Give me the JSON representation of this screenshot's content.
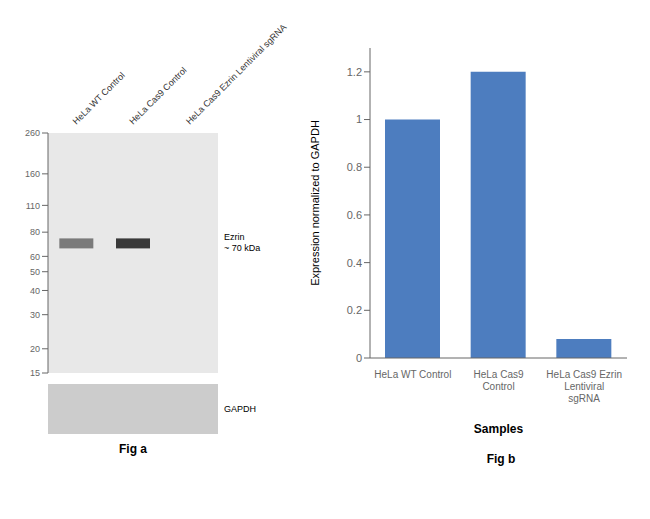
{
  "chart_data": [
    {
      "type": "blot",
      "title": "Fig a",
      "categories": [
        "HeLa WT Control",
        "HeLa Cas9 Control",
        "HeLa Cas9 Ezrin Lentiviral sgRNA"
      ],
      "log": "y",
      "ylim": [
        15,
        260
      ],
      "yticks": [
        260,
        160,
        110,
        80,
        60,
        50,
        40,
        30,
        20,
        15
      ],
      "series": [
        {
          "name": "Ezrin\n~ 70 kDa",
          "values": [
            70,
            70,
            null
          ],
          "colors": [
            "#666666",
            "#1a1a1a",
            null
          ]
        }
      ],
      "annotations": [
        "GAPDH"
      ]
    },
    {
      "type": "bar",
      "title": "Fig b",
      "categories": [
        "HeLa WT Control",
        "HeLa Cas9 Control",
        "HeLa Cas9 Ezrin Lentiviral\nsgRNA"
      ],
      "values": [
        1.0,
        1.2,
        0.08
      ],
      "color": "#4d7dbf",
      "xlabel": "Samples",
      "ylabel": "Expression  normalized to GAPDH",
      "ylim": [
        0,
        1.3
      ],
      "yticks": [
        0,
        0.2,
        0.4,
        0.6,
        0.8,
        1.0,
        1.2
      ],
      "grid": false
    }
  ]
}
